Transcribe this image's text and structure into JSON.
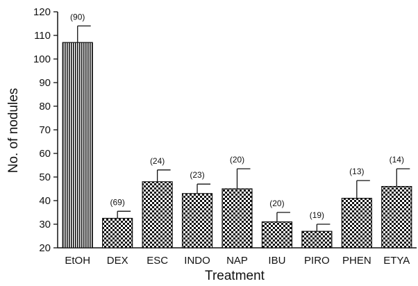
{
  "chart_data": {
    "type": "bar",
    "xlabel": "Treatment",
    "ylabel": "No. of nodules",
    "ylim": [
      20,
      120
    ],
    "yticks": [
      20,
      30,
      40,
      50,
      60,
      70,
      80,
      90,
      100,
      110,
      120
    ],
    "categories": [
      "EtOH",
      "DEX",
      "ESC",
      "INDO",
      "NAP",
      "IBU",
      "PIRO",
      "PHEN",
      "ETYA"
    ],
    "values": [
      107,
      32.5,
      48,
      43,
      45,
      31,
      27,
      41,
      46
    ],
    "error_upper": [
      114,
      35.5,
      53,
      47,
      53.5,
      35,
      30,
      48.5,
      53.5
    ],
    "n_labels": [
      "(90)",
      "(69)",
      "(24)",
      "(23)",
      "(20)",
      "(20)",
      "(19)",
      "(13)",
      "(14)"
    ],
    "patterns": [
      "vertical-stripes",
      "checker",
      "checker",
      "checker",
      "checker",
      "checker",
      "checker",
      "checker",
      "checker"
    ],
    "grid": false,
    "colors": {
      "bar": "#111111",
      "background": "#ffffff",
      "axis": "#111111"
    }
  }
}
